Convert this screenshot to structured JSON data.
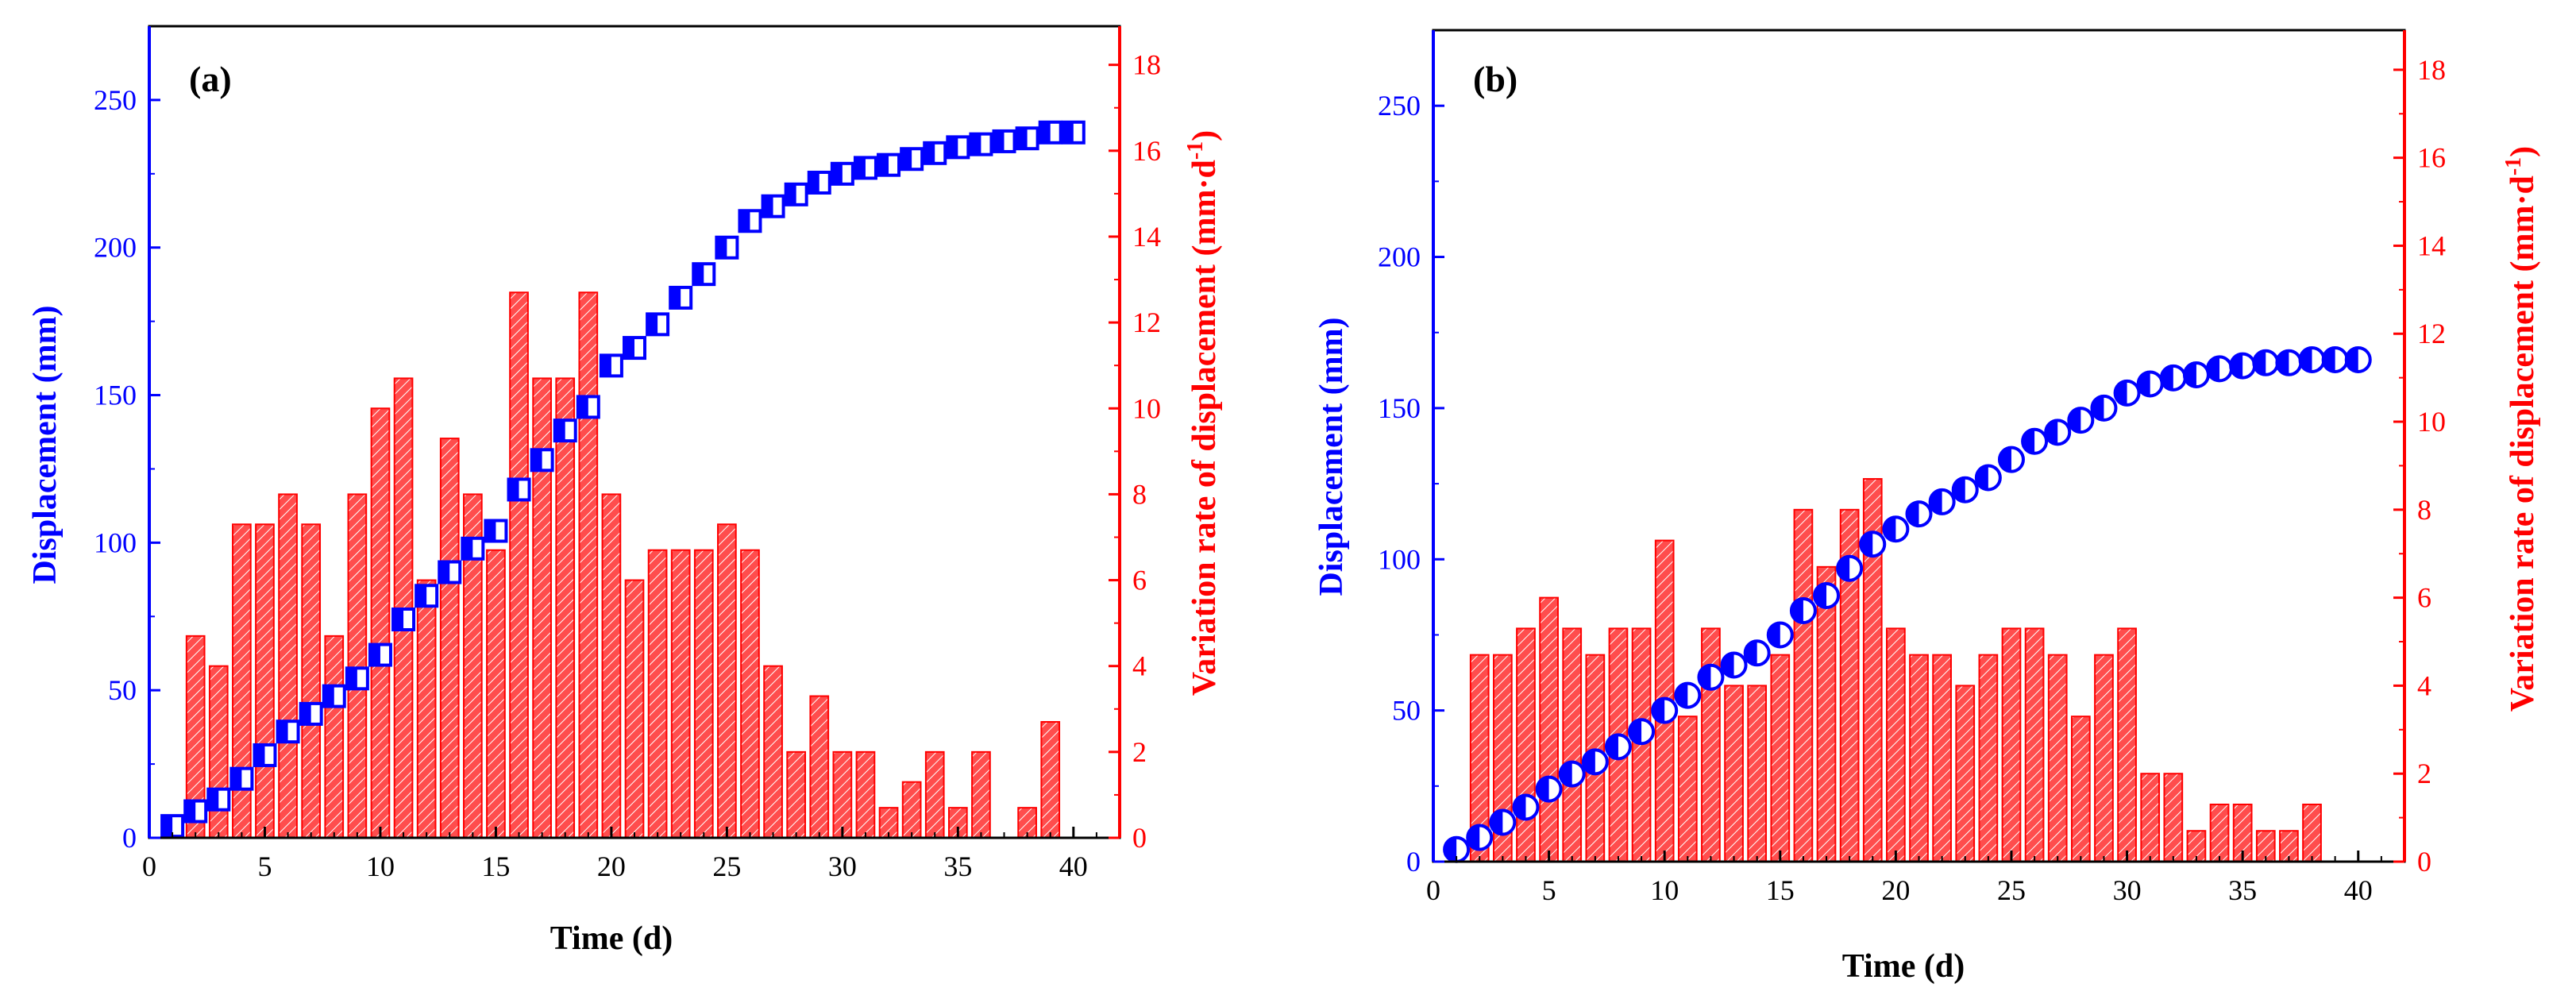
{
  "colors": {
    "left_axis": "#0000ff",
    "right_axis": "#ff0000",
    "bar_fill": "#ff4040",
    "bar_edge": "#ff0000",
    "marker": "#0000ff",
    "frame": "#000000"
  },
  "chart_data": [
    {
      "type": "bar+scatter",
      "panel_label": "(a)",
      "xlabel": "Time (d)",
      "ylabel_left": "Displacement (mm)",
      "ylabel_right_main": "Variation rate of displacement (mm·d",
      "ylabel_right_sup": "-1",
      "ylabel_right_tail": ")",
      "xlim": [
        0,
        42
      ],
      "xticks": [
        0,
        5,
        10,
        15,
        20,
        25,
        30,
        35,
        40
      ],
      "ylim_left": [
        0,
        275
      ],
      "yticks_left": [
        0,
        50,
        100,
        150,
        200,
        250
      ],
      "ylim_right": [
        0,
        18.9
      ],
      "yticks_right": [
        0,
        2,
        4,
        6,
        8,
        10,
        12,
        14,
        16,
        18
      ],
      "marker": "half-filled-square",
      "displacement": {
        "x": [
          1,
          2,
          3,
          4,
          5,
          6,
          7,
          8,
          9,
          10,
          11,
          12,
          13,
          14,
          15,
          16,
          17,
          18,
          19,
          20,
          21,
          22,
          23,
          24,
          25,
          26,
          27,
          28,
          29,
          30,
          31,
          32,
          33,
          34,
          35,
          36,
          37,
          38,
          39,
          40
        ],
        "y": [
          4,
          9,
          13,
          20,
          28,
          36,
          42,
          48,
          54,
          62,
          74,
          82,
          90,
          98,
          104,
          118,
          128,
          138,
          146,
          160,
          166,
          174,
          183,
          191,
          200,
          209,
          214,
          218,
          222,
          225,
          227,
          228,
          230,
          232,
          234,
          235,
          236,
          237,
          239,
          239
        ]
      },
      "rate": {
        "x": [
          1,
          2,
          3,
          4,
          5,
          6,
          7,
          8,
          9,
          10,
          11,
          12,
          13,
          14,
          15,
          16,
          17,
          18,
          19,
          20,
          21,
          22,
          23,
          24,
          25,
          26,
          27,
          28,
          29,
          30,
          31,
          32,
          33,
          34,
          35,
          36,
          37,
          38,
          39,
          40
        ],
        "y": [
          0,
          4.7,
          4,
          7.3,
          7.3,
          8,
          7.3,
          4.7,
          8,
          10,
          10.7,
          6,
          9.3,
          8,
          6.7,
          12.7,
          10.7,
          10.7,
          12.7,
          8,
          6,
          6.7,
          6.7,
          6.7,
          7.3,
          6.7,
          4,
          2,
          3.3,
          2,
          2,
          0.7,
          1.3,
          2,
          0.7,
          2,
          0,
          0.7,
          2.7,
          0
        ]
      }
    },
    {
      "type": "bar+scatter",
      "panel_label": "(b)",
      "xlabel": "Time (d)",
      "ylabel_left": "Displacement (mm)",
      "ylabel_right_main": "Variation rate of displacement (mm·d",
      "ylabel_right_sup": "-1",
      "ylabel_right_tail": ")",
      "xlim": [
        0,
        42
      ],
      "xticks": [
        0,
        5,
        10,
        15,
        20,
        25,
        30,
        35,
        40
      ],
      "ylim_left": [
        0,
        275
      ],
      "yticks_left": [
        0,
        50,
        100,
        150,
        200,
        250
      ],
      "ylim_right": [
        0,
        18.9
      ],
      "yticks_right": [
        0,
        2,
        4,
        6,
        8,
        10,
        12,
        14,
        16,
        18
      ],
      "marker": "half-filled-circle",
      "displacement": {
        "x": [
          1,
          2,
          3,
          4,
          5,
          6,
          7,
          8,
          9,
          10,
          11,
          12,
          13,
          14,
          15,
          16,
          17,
          18,
          19,
          20,
          21,
          22,
          23,
          24,
          25,
          26,
          27,
          28,
          29,
          30,
          31,
          32,
          33,
          34,
          35,
          36,
          37,
          38,
          39,
          40
        ],
        "y": [
          4,
          8,
          13,
          18,
          24,
          29,
          33,
          38,
          43,
          50,
          55,
          61,
          65,
          69,
          75,
          83,
          88,
          97,
          105,
          110,
          115,
          119,
          123,
          127,
          133,
          139,
          142,
          146,
          150,
          155,
          158,
          160,
          161,
          163,
          164,
          165,
          165,
          166,
          166,
          166
        ]
      },
      "rate": {
        "x": [
          1,
          2,
          3,
          4,
          5,
          6,
          7,
          8,
          9,
          10,
          11,
          12,
          13,
          14,
          15,
          16,
          17,
          18,
          19,
          20,
          21,
          22,
          23,
          24,
          25,
          26,
          27,
          28,
          29,
          30,
          31,
          32,
          33,
          34,
          35,
          36,
          37,
          38,
          39,
          40
        ],
        "y": [
          0,
          4.7,
          4.7,
          5.3,
          6,
          5.3,
          4.7,
          5.3,
          5.3,
          7.3,
          3.3,
          5.3,
          4,
          4,
          4.7,
          8,
          6.7,
          8,
          8.7,
          5.3,
          4.7,
          4.7,
          4,
          4.7,
          5.3,
          5.3,
          4.7,
          3.3,
          4.7,
          5.3,
          2,
          2,
          0.7,
          1.3,
          1.3,
          0.7,
          0.7,
          1.3,
          0,
          0
        ]
      }
    }
  ]
}
